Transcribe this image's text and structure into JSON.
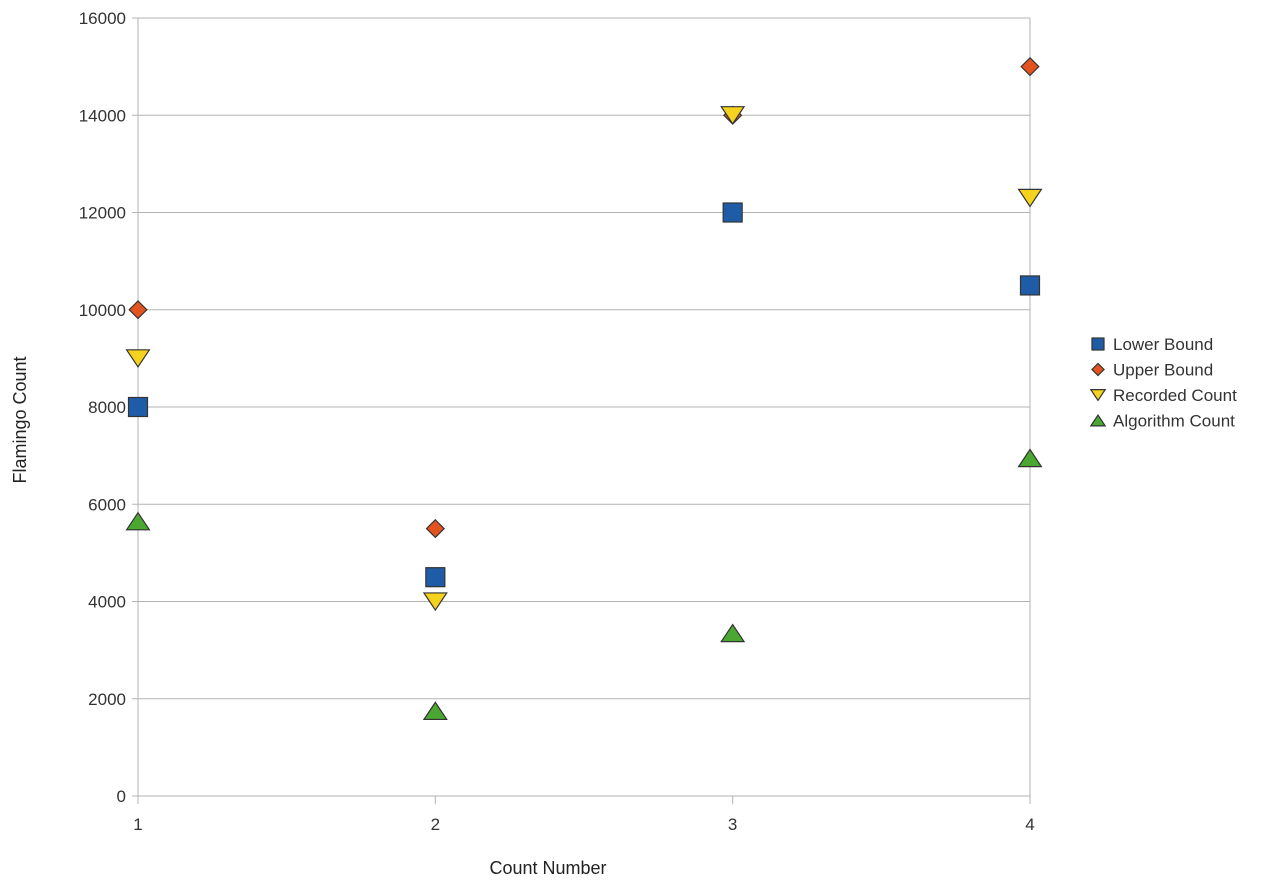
{
  "chart_data": {
    "type": "scatter",
    "title": "",
    "xlabel": "Count Number",
    "ylabel": "Flamingo Count",
    "x": [
      1,
      2,
      3,
      4
    ],
    "x_ticks": [
      "1",
      "2",
      "3",
      "4"
    ],
    "xlim": [
      1,
      4
    ],
    "ylim": [
      0,
      16000
    ],
    "y_ticks": [
      "0",
      "2000",
      "4000",
      "6000",
      "8000",
      "10000",
      "12000",
      "14000",
      "16000"
    ],
    "grid": "horizontal",
    "legend_position": "right",
    "series": [
      {
        "name": "Lower Bound",
        "marker": "square",
        "color": "#1f5ca8",
        "values": [
          8000,
          4500,
          12000,
          10500
        ]
      },
      {
        "name": "Upper Bound",
        "marker": "diamond",
        "color": "#e2531f",
        "values": [
          10000,
          5500,
          14000,
          15000
        ]
      },
      {
        "name": "Recorded Count",
        "marker": "triangle-down",
        "color": "#f5d21e",
        "values": [
          9000,
          4000,
          14000,
          12300
        ]
      },
      {
        "name": "Algorithm Count",
        "marker": "triangle-up",
        "color": "#4aa832",
        "values": [
          5650,
          1750,
          3350,
          6950
        ]
      }
    ]
  }
}
